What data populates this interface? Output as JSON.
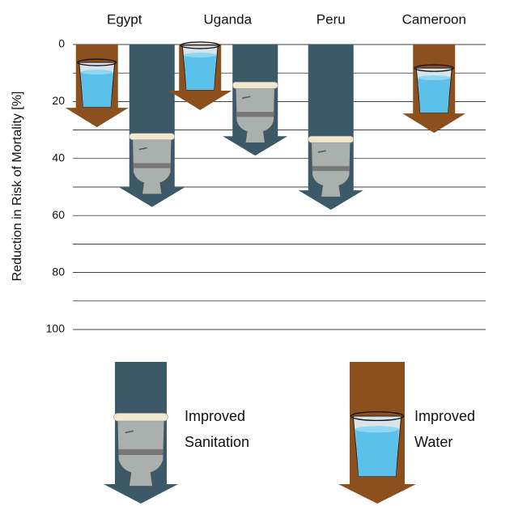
{
  "chart_data": {
    "type": "arrow-bar",
    "y_label": "Reduction in Risk of Mortality [%]",
    "categories": [
      "Egypt",
      "Uganda",
      "Peru",
      "Cameroon"
    ],
    "series": [
      {
        "name": "Improved Water",
        "color": "#8c4f1e",
        "values": [
          29,
          23,
          null,
          31
        ]
      },
      {
        "name": "Improved Sanitation",
        "color": "#3b5967",
        "values": [
          57,
          39,
          58,
          null
        ]
      }
    ],
    "ylim": [
      0,
      100
    ],
    "yticks": [
      0,
      20,
      40,
      60,
      80,
      100
    ],
    "minor_yticks": [
      10,
      30,
      50,
      70,
      90
    ],
    "grid": true,
    "y_inverted": true
  }
}
